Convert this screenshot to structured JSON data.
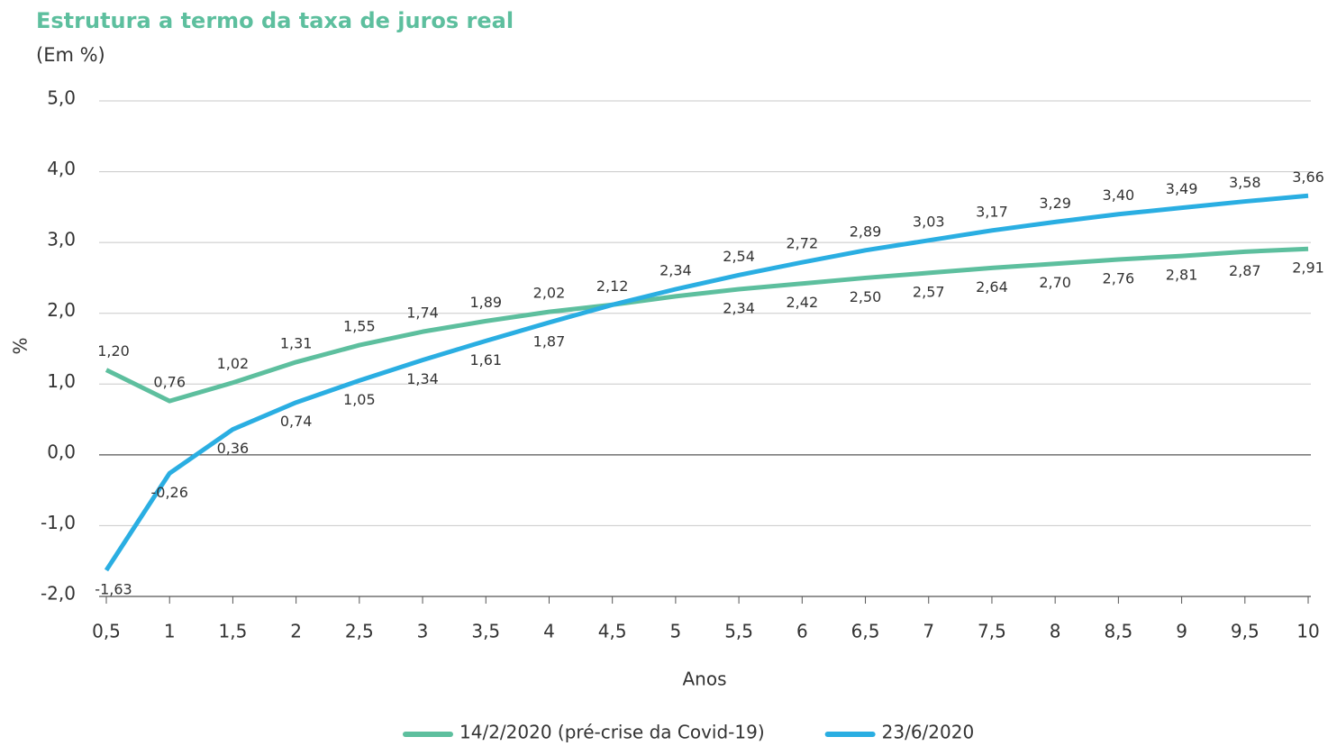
{
  "chart_data": {
    "type": "line",
    "title": "Estrutura a termo da taxa de juros real",
    "subtitle": "(Em %)",
    "x_label": "Anos",
    "y_label": "%",
    "categories": [
      "0,5",
      "1",
      "1,5",
      "2",
      "2,5",
      "3",
      "3,5",
      "4",
      "4,5",
      "5",
      "5,5",
      "6",
      "6,5",
      "7",
      "7,5",
      "8",
      "8,5",
      "9",
      "9,5",
      "10"
    ],
    "series": [
      {
        "name": "14/2/2020 (pré-crise da Covid-19)",
        "color": "#5dbf9e",
        "values": [
          1.2,
          0.76,
          1.02,
          1.31,
          1.55,
          1.74,
          1.89,
          2.02,
          2.12,
          2.24,
          2.34,
          2.42,
          2.5,
          2.57,
          2.64,
          2.7,
          2.76,
          2.81,
          2.87,
          2.91
        ],
        "value_labels": [
          "1,20",
          "0,76",
          "1,02",
          "1,31",
          "1,55",
          "1,74",
          "1,89",
          "2,02",
          null,
          null,
          "2,34",
          "2,42",
          "2,50",
          "2,57",
          "2,64",
          "2,70",
          "2,76",
          "2,81",
          "2,87",
          "2,91"
        ]
      },
      {
        "name": "23/6/2020",
        "color": "#2aaee2",
        "values": [
          -1.63,
          -0.26,
          0.36,
          0.74,
          1.05,
          1.34,
          1.61,
          1.87,
          2.12,
          2.34,
          2.54,
          2.72,
          2.89,
          3.03,
          3.17,
          3.29,
          3.4,
          3.49,
          3.58,
          3.66
        ],
        "value_labels": [
          "-1,63",
          "-0,26",
          "0,36",
          "0,74",
          "1,05",
          "1,34",
          "1,61",
          "1,87",
          "2,12",
          "2,34",
          "2,54",
          "2,72",
          "2,89",
          "3,03",
          "3,17",
          "3,29",
          "3,40",
          "3,49",
          "3,58",
          "3,66"
        ]
      }
    ],
    "ylim": [
      -2,
      5
    ],
    "yticks": [
      {
        "value": -2,
        "label": "-2,0"
      },
      {
        "value": -1,
        "label": "-1,0"
      },
      {
        "value": 0,
        "label": "0,0"
      },
      {
        "value": 1,
        "label": "1,0"
      },
      {
        "value": 2,
        "label": "2,0"
      },
      {
        "value": 3,
        "label": "3,0"
      },
      {
        "value": 4,
        "label": "4,0"
      },
      {
        "value": 5,
        "label": "5,0"
      }
    ],
    "grid": true
  }
}
